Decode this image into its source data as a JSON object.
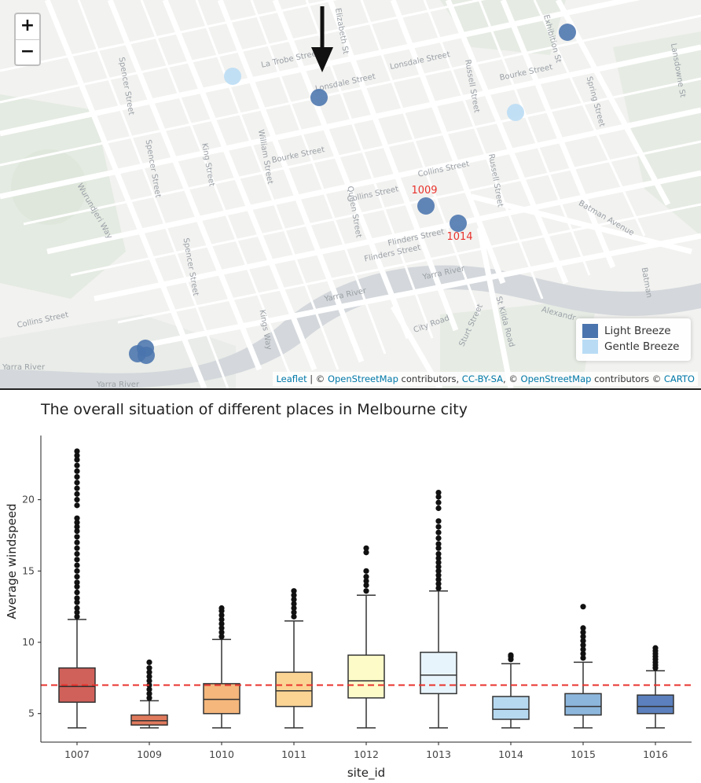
{
  "map": {
    "zoom_in_label": "+",
    "zoom_out_label": "−",
    "streets": [
      "La Trobe Street",
      "Lonsdale Street",
      "Lonsdale Street",
      "Exhibition St",
      "Bourke Street",
      "Spring Street",
      "Spencer Street",
      "Spencer Street",
      "King Street",
      "William Street",
      "Queen Street",
      "Elizabeth St",
      "Russell Street",
      "Russell Street",
      "Bourke Street",
      "Collins Street",
      "Collins Street",
      "Flinders Street",
      "Flinders Street",
      "Wurundjeri Way",
      "Spencer Street",
      "Batman Avenue",
      "Yarra River",
      "Yarra River",
      "City Road",
      "Sturt Street",
      "St Kilda Road",
      "Collins Street",
      "Lansdowne St",
      "Kings Way",
      "Alexandr",
      "Batman",
      "Yarra River",
      "Yarra River"
    ],
    "site_labels": [
      "1009",
      "1014"
    ],
    "legend": [
      {
        "label": "Light Breeze",
        "color": "#4a74ad"
      },
      {
        "label": "Gentle Breeze",
        "color": "#b9dcf4"
      }
    ],
    "attribution": {
      "leaflet": "Leaflet",
      "sep1": " | © ",
      "osm1": "OpenStreetMap",
      "contrib1": " contributors, ",
      "ccbysa": "CC-BY-SA",
      "sep2": ", © ",
      "osm2": "OpenStreetMap",
      "contrib2": " contributors © ",
      "carto": "CARTO"
    },
    "colors": {
      "light_breeze": "#4a74ad",
      "gentle_breeze": "#b9dcf4",
      "label": "#e8322c"
    }
  },
  "chart_data": {
    "type": "box",
    "title": "The overall situation of different places in Melbourne city",
    "xlabel": "site_id",
    "ylabel": "Average windspeed",
    "ylim": [
      3,
      24.5
    ],
    "yticks": [
      5,
      10,
      15,
      20
    ],
    "reference_line": {
      "value": 7,
      "color": "#e8322c",
      "style": "dashed"
    },
    "categories": [
      "1007",
      "1009",
      "1010",
      "1011",
      "1012",
      "1013",
      "1014",
      "1015",
      "1016"
    ],
    "boxes": [
      {
        "site": "1007",
        "low": 4,
        "q1": 5.8,
        "median": 6.9,
        "q3": 8.2,
        "high": 11.6,
        "outliers": [
          11.8,
          12.1,
          12.4,
          12.8,
          13.1,
          13.5,
          13.9,
          14.2,
          14.6,
          15.0,
          15.4,
          15.8,
          16.2,
          16.6,
          17.0,
          17.4,
          17.8,
          18.1,
          18.4,
          18.7,
          19.6,
          20.0,
          20.4,
          20.8,
          21.2,
          21.6,
          22.0,
          22.4,
          22.8,
          23.1,
          23.4
        ],
        "color": "#d0605a"
      },
      {
        "site": "1009",
        "low": 4,
        "q1": 4.2,
        "median": 4.5,
        "q3": 4.9,
        "high": 5.9,
        "outliers": [
          6.1,
          6.4,
          6.7,
          7.0,
          7.3,
          7.6,
          7.9,
          8.2,
          8.6
        ],
        "color": "#e07a5c"
      },
      {
        "site": "1010",
        "low": 4,
        "q1": 5.0,
        "median": 6.0,
        "q3": 7.1,
        "high": 10.2,
        "outliers": [
          10.4,
          10.7,
          11.0,
          11.3,
          11.6,
          11.9,
          12.2,
          12.4
        ],
        "color": "#f5b77c"
      },
      {
        "site": "1011",
        "low": 4,
        "q1": 5.5,
        "median": 6.6,
        "q3": 7.9,
        "high": 11.5,
        "outliers": [
          11.8,
          12.1,
          12.4,
          12.7,
          13.0,
          13.3,
          13.6
        ],
        "color": "#fbd494"
      },
      {
        "site": "1012",
        "low": 4,
        "q1": 6.1,
        "median": 7.3,
        "q3": 9.1,
        "high": 13.3,
        "outliers": [
          13.6,
          14.0,
          14.3,
          14.6,
          15.0,
          16.3,
          16.6
        ],
        "color": "#fdfcc8"
      },
      {
        "site": "1013",
        "low": 4,
        "q1": 6.4,
        "median": 7.7,
        "q3": 9.3,
        "high": 13.6,
        "outliers": [
          13.8,
          14.1,
          14.4,
          14.7,
          15.0,
          15.3,
          15.6,
          15.9,
          16.2,
          16.6,
          16.9,
          17.3,
          17.7,
          18.1,
          18.5,
          19.4,
          19.8,
          20.2,
          20.5
        ],
        "color": "#e8f4fb"
      },
      {
        "site": "1014",
        "low": 4,
        "q1": 4.6,
        "median": 5.3,
        "q3": 6.2,
        "high": 8.5,
        "outliers": [
          8.8,
          9.0,
          9.1
        ],
        "color": "#b6d9f0"
      },
      {
        "site": "1015",
        "low": 4,
        "q1": 4.9,
        "median": 5.5,
        "q3": 6.4,
        "high": 8.6,
        "outliers": [
          8.9,
          9.2,
          9.5,
          9.8,
          10.1,
          10.4,
          10.7,
          11.0,
          12.5
        ],
        "color": "#8db6dc"
      },
      {
        "site": "1016",
        "low": 4,
        "q1": 5.0,
        "median": 5.5,
        "q3": 6.3,
        "high": 8.0,
        "outliers": [
          8.2,
          8.4,
          8.6,
          8.8,
          9.0,
          9.2,
          9.4,
          9.6
        ],
        "color": "#5b80bd"
      }
    ]
  }
}
